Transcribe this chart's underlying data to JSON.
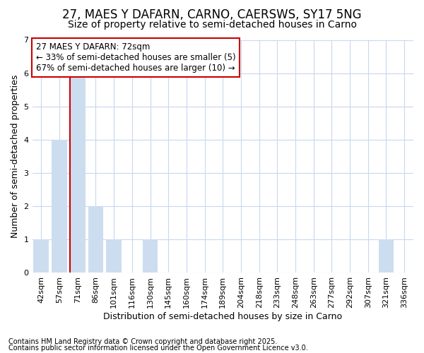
{
  "title": "27, MAES Y DAFARN, CARNO, CAERSWS, SY17 5NG",
  "subtitle": "Size of property relative to semi-detached houses in Carno",
  "xlabel": "Distribution of semi-detached houses by size in Carno",
  "ylabel": "Number of semi-detached properties",
  "categories": [
    "42sqm",
    "57sqm",
    "71sqm",
    "86sqm",
    "101sqm",
    "116sqm",
    "130sqm",
    "145sqm",
    "160sqm",
    "174sqm",
    "189sqm",
    "204sqm",
    "218sqm",
    "233sqm",
    "248sqm",
    "263sqm",
    "277sqm",
    "292sqm",
    "307sqm",
    "321sqm",
    "336sqm"
  ],
  "values": [
    1,
    4,
    6,
    2,
    1,
    0,
    1,
    0,
    0,
    0,
    0,
    0,
    0,
    0,
    0,
    0,
    0,
    0,
    0,
    1,
    0
  ],
  "bar_color": "#ccddf0",
  "bar_edge_color": "#ccddf0",
  "highlight_index": 2,
  "highlight_line_color": "#cc0000",
  "ylim": [
    0,
    7
  ],
  "yticks": [
    0,
    1,
    2,
    3,
    4,
    5,
    6,
    7
  ],
  "annotation_line1": "27 MAES Y DAFARN: 72sqm",
  "annotation_line2": "← 33% of semi-detached houses are smaller (5)",
  "annotation_line3": "67% of semi-detached houses are larger (10) →",
  "annotation_box_color": "#ffffff",
  "annotation_box_edge_color": "#cc0000",
  "footer_line1": "Contains HM Land Registry data © Crown copyright and database right 2025.",
  "footer_line2": "Contains public sector information licensed under the Open Government Licence v3.0.",
  "background_color": "#ffffff",
  "plot_background_color": "#ffffff",
  "grid_color": "#c8d8f0",
  "title_fontsize": 12,
  "subtitle_fontsize": 10,
  "axis_label_fontsize": 9,
  "tick_fontsize": 8,
  "annotation_fontsize": 8.5,
  "footer_fontsize": 7
}
